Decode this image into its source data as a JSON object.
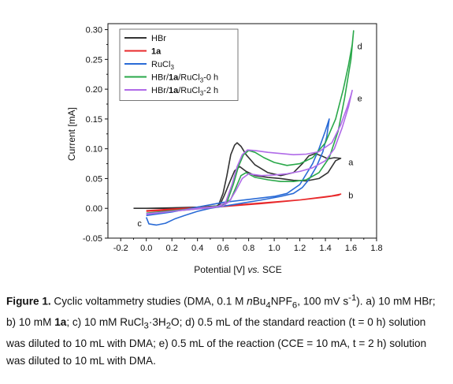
{
  "chart_data": {
    "type": "line",
    "xlabel_main": "Potential [V] ",
    "xlabel_vs": "vs.",
    "xlabel_ref": " SCE",
    "ylabel": "Current [mA]",
    "xlim": [
      -0.3,
      1.8
    ],
    "ylim": [
      -0.05,
      0.31
    ],
    "x_ticks": [
      "-0.2",
      "0.0",
      "0.2",
      "0.4",
      "0.6",
      "0.8",
      "1.0",
      "1.2",
      "1.4",
      "1.6",
      "1.8"
    ],
    "x_tick_values": [
      -0.2,
      0.0,
      0.2,
      0.4,
      0.6,
      0.8,
      1.0,
      1.2,
      1.4,
      1.6,
      1.8
    ],
    "y_ticks": [
      "-0.05",
      "0.00",
      "0.05",
      "0.10",
      "0.15",
      "0.20",
      "0.25",
      "0.30"
    ],
    "y_tick_values": [
      -0.05,
      0.0,
      0.05,
      0.1,
      0.15,
      0.2,
      0.25,
      0.3
    ],
    "legend_position": "top-left",
    "series": [
      {
        "legend": "HBr",
        "legend_bold": "",
        "legend_suffix": "",
        "color": "#333333",
        "end_label": "a",
        "end_label_pos": [
          1.58,
          0.078
        ],
        "points": [
          [
            -0.1,
            0.0
          ],
          [
            0.2,
            0.0
          ],
          [
            0.5,
            0.001
          ],
          [
            0.56,
            0.003
          ],
          [
            0.6,
            0.025
          ],
          [
            0.63,
            0.055
          ],
          [
            0.66,
            0.09
          ],
          [
            0.69,
            0.106
          ],
          [
            0.71,
            0.11
          ],
          [
            0.74,
            0.104
          ],
          [
            0.78,
            0.09
          ],
          [
            0.85,
            0.073
          ],
          [
            0.95,
            0.06
          ],
          [
            1.05,
            0.055
          ],
          [
            1.15,
            0.06
          ],
          [
            1.22,
            0.075
          ],
          [
            1.27,
            0.088
          ],
          [
            1.32,
            0.092
          ],
          [
            1.37,
            0.088
          ],
          [
            1.42,
            0.083
          ],
          [
            1.47,
            0.085
          ],
          [
            1.52,
            0.084
          ],
          [
            1.48,
            0.08
          ],
          [
            1.42,
            0.06
          ],
          [
            1.35,
            0.05
          ],
          [
            1.25,
            0.046
          ],
          [
            1.15,
            0.047
          ],
          [
            1.05,
            0.05
          ],
          [
            0.95,
            0.052
          ],
          [
            0.85,
            0.055
          ],
          [
            0.78,
            0.062
          ],
          [
            0.73,
            0.07
          ],
          [
            0.69,
            0.063
          ],
          [
            0.65,
            0.043
          ],
          [
            0.61,
            0.022
          ],
          [
            0.58,
            0.008
          ],
          [
            0.55,
            0.004
          ],
          [
            0.4,
            0.002
          ],
          [
            0.2,
            0.001
          ],
          [
            0.0,
            0.0
          ]
        ]
      },
      {
        "legend": "",
        "legend_bold": "1a",
        "legend_suffix": "",
        "color": "#e8292b",
        "end_label": "b",
        "end_label_pos": [
          1.58,
          0.022
        ],
        "points": [
          [
            0.0,
            -0.004
          ],
          [
            0.3,
            0.0
          ],
          [
            0.6,
            0.004
          ],
          [
            0.9,
            0.009
          ],
          [
            1.2,
            0.014
          ],
          [
            1.4,
            0.019
          ],
          [
            1.5,
            0.022
          ],
          [
            1.52,
            0.024
          ],
          [
            1.45,
            0.021
          ],
          [
            1.2,
            0.014
          ],
          [
            0.9,
            0.008
          ],
          [
            0.6,
            0.003
          ],
          [
            0.3,
            -0.002
          ],
          [
            0.0,
            -0.005
          ]
        ]
      },
      {
        "legend": "RuCl",
        "legend_bold": "",
        "legend_suffix": "3",
        "color": "#2a6bd6",
        "end_label": "c",
        "end_label_pos": [
          -0.07,
          -0.025
        ],
        "points": [
          [
            0.0,
            -0.012
          ],
          [
            0.2,
            -0.006
          ],
          [
            0.4,
            0.002
          ],
          [
            0.6,
            0.01
          ],
          [
            0.8,
            0.015
          ],
          [
            1.0,
            0.02
          ],
          [
            1.1,
            0.025
          ],
          [
            1.2,
            0.04
          ],
          [
            1.3,
            0.075
          ],
          [
            1.35,
            0.1
          ],
          [
            1.4,
            0.13
          ],
          [
            1.43,
            0.15
          ],
          [
            1.41,
            0.12
          ],
          [
            1.38,
            0.095
          ],
          [
            1.33,
            0.07
          ],
          [
            1.27,
            0.048
          ],
          [
            1.22,
            0.035
          ],
          [
            1.15,
            0.025
          ],
          [
            1.05,
            0.02
          ],
          [
            0.9,
            0.014
          ],
          [
            0.7,
            0.007
          ],
          [
            0.5,
            0.0
          ],
          [
            0.4,
            -0.005
          ],
          [
            0.3,
            -0.012
          ],
          [
            0.22,
            -0.018
          ],
          [
            0.15,
            -0.025
          ],
          [
            0.08,
            -0.028
          ],
          [
            0.02,
            -0.026
          ],
          [
            0.0,
            -0.015
          ]
        ]
      },
      {
        "legend": "HBr/",
        "legend_bold": "1a",
        "legend_suffix": "/RuCl3-0 h",
        "color": "#2aa84a",
        "end_label": "d",
        "end_label_pos": [
          1.65,
          0.272
        ],
        "points": [
          [
            0.0,
            -0.008
          ],
          [
            0.3,
            -0.003
          ],
          [
            0.55,
            0.002
          ],
          [
            0.63,
            0.01
          ],
          [
            0.68,
            0.04
          ],
          [
            0.72,
            0.07
          ],
          [
            0.76,
            0.09
          ],
          [
            0.8,
            0.097
          ],
          [
            0.85,
            0.094
          ],
          [
            0.92,
            0.085
          ],
          [
            1.0,
            0.077
          ],
          [
            1.1,
            0.072
          ],
          [
            1.2,
            0.075
          ],
          [
            1.3,
            0.085
          ],
          [
            1.4,
            0.11
          ],
          [
            1.48,
            0.15
          ],
          [
            1.54,
            0.2
          ],
          [
            1.58,
            0.24
          ],
          [
            1.61,
            0.275
          ],
          [
            1.62,
            0.298
          ],
          [
            1.6,
            0.25
          ],
          [
            1.55,
            0.185
          ],
          [
            1.5,
            0.13
          ],
          [
            1.43,
            0.085
          ],
          [
            1.35,
            0.06
          ],
          [
            1.25,
            0.048
          ],
          [
            1.15,
            0.045
          ],
          [
            1.05,
            0.045
          ],
          [
            0.95,
            0.048
          ],
          [
            0.85,
            0.052
          ],
          [
            0.78,
            0.06
          ],
          [
            0.74,
            0.055
          ],
          [
            0.7,
            0.035
          ],
          [
            0.66,
            0.015
          ],
          [
            0.6,
            0.005
          ],
          [
            0.4,
            0.0
          ],
          [
            0.2,
            -0.004
          ],
          [
            0.0,
            -0.008
          ]
        ]
      },
      {
        "legend": "HBr/",
        "legend_bold": "1a",
        "legend_suffix": "/RuCl3-2 h",
        "color": "#b06be8",
        "end_label": "e",
        "end_label_pos": [
          1.65,
          0.185
        ],
        "points": [
          [
            0.0,
            -0.009
          ],
          [
            0.3,
            -0.003
          ],
          [
            0.55,
            0.002
          ],
          [
            0.62,
            0.01
          ],
          [
            0.67,
            0.04
          ],
          [
            0.71,
            0.07
          ],
          [
            0.75,
            0.09
          ],
          [
            0.79,
            0.098
          ],
          [
            0.85,
            0.097
          ],
          [
            0.95,
            0.094
          ],
          [
            1.05,
            0.092
          ],
          [
            1.15,
            0.09
          ],
          [
            1.25,
            0.091
          ],
          [
            1.35,
            0.095
          ],
          [
            1.45,
            0.11
          ],
          [
            1.52,
            0.14
          ],
          [
            1.57,
            0.17
          ],
          [
            1.6,
            0.19
          ],
          [
            1.61,
            0.198
          ],
          [
            1.58,
            0.17
          ],
          [
            1.53,
            0.135
          ],
          [
            1.47,
            0.1
          ],
          [
            1.4,
            0.08
          ],
          [
            1.3,
            0.068
          ],
          [
            1.2,
            0.062
          ],
          [
            1.1,
            0.058
          ],
          [
            1.0,
            0.056
          ],
          [
            0.9,
            0.055
          ],
          [
            0.8,
            0.058
          ],
          [
            0.75,
            0.05
          ],
          [
            0.7,
            0.03
          ],
          [
            0.65,
            0.012
          ],
          [
            0.6,
            0.004
          ],
          [
            0.4,
            0.0
          ],
          [
            0.2,
            -0.005
          ],
          [
            0.0,
            -0.01
          ]
        ]
      }
    ]
  },
  "caption": {
    "label": "Figure 1.",
    "t1": " Cyclic voltammetry studies (DMA, 0.1 M ",
    "t2": "n",
    "t3": "Bu",
    "t3sub": "4",
    "t4": "NPF",
    "t4sub": "6",
    "t5": ", 100 mV s",
    "t5sup": "-1",
    "t6": "). a) 10 mM HBr; b) 10 mM ",
    "t7": "1a",
    "t8": "; c) 10 mM RuCl",
    "t8sub": "3",
    "t9": "·3H",
    "t9sub": "2",
    "t10": "O; d) 0.5 mL of the standard reaction (t = 0 h) solution was diluted to 10 mL with DMA; e) 0.5 mL of the reaction (CCE = 10 mA, t = 2 h) solution was diluted to 10 mL with DMA."
  }
}
